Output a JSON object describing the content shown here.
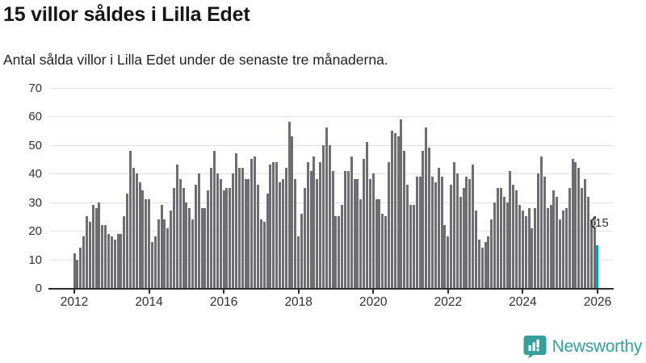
{
  "header": {
    "title": "15 villor såldes i Lilla Edet",
    "subtitle": "Antal sålda villor i Lilla Edet under de senaste tre månaderna."
  },
  "chart_data": {
    "type": "bar",
    "title": "15 villor såldes i Lilla Edet",
    "description": "Monthly bars of sold houses, Jan 2012 through latest period",
    "start_year": 2012,
    "values": [
      12,
      10,
      14,
      18,
      25,
      23,
      29,
      28,
      30,
      22,
      22,
      19,
      18,
      17,
      19,
      19,
      25,
      33,
      48,
      42,
      40,
      37,
      34,
      31,
      31,
      16,
      18,
      24,
      29,
      24,
      21,
      27,
      35,
      43,
      38,
      35,
      30,
      28,
      24,
      36,
      40,
      28,
      28,
      34,
      42,
      48,
      40,
      38,
      34,
      35,
      35,
      40,
      47,
      42,
      42,
      38,
      38,
      45,
      46,
      36,
      24,
      23,
      33,
      43,
      44,
      44,
      37,
      38,
      42,
      58,
      53,
      38,
      18,
      26,
      35,
      44,
      41,
      46,
      38,
      44,
      50,
      56,
      50,
      41,
      25,
      25,
      29,
      41,
      41,
      46,
      38,
      38,
      31,
      45,
      51,
      38,
      40,
      31,
      31,
      26,
      25,
      44,
      55,
      54,
      53,
      59,
      48,
      36,
      29,
      29,
      39,
      39,
      48,
      56,
      49,
      39,
      37,
      42,
      39,
      22,
      18,
      36,
      44,
      40,
      32,
      35,
      39,
      38,
      43,
      27,
      17,
      14,
      16,
      18,
      24,
      30,
      35,
      35,
      32,
      30,
      41,
      36,
      34,
      29,
      27,
      25,
      28,
      21,
      28,
      40,
      46,
      39,
      28,
      29,
      34,
      32,
      24,
      27,
      28,
      35,
      45,
      44,
      42,
      35,
      38,
      32,
      24,
      25,
      15
    ],
    "highlight": {
      "index": 168,
      "value": 15,
      "label": "15",
      "color": "#0ca2a1"
    },
    "bar_color": "#6d6d72",
    "y_ticks": [
      0,
      10,
      20,
      30,
      40,
      50,
      60,
      70
    ],
    "ylim": [
      0,
      70
    ],
    "x_ticks": [
      {
        "label": "2012",
        "month_index": 0
      },
      {
        "label": "2014",
        "month_index": 24
      },
      {
        "label": "2016",
        "month_index": 48
      },
      {
        "label": "2018",
        "month_index": 72
      },
      {
        "label": "2020",
        "month_index": 96
      },
      {
        "label": "2022",
        "month_index": 120
      },
      {
        "label": "2024",
        "month_index": 144
      },
      {
        "label": "2026",
        "month_index": 168
      }
    ],
    "grid": true,
    "legend": null
  },
  "footer": {
    "brand": "Newsworthy",
    "logo_icon": "speech-bubble-bar-chart-icon",
    "brand_color": "#379f99"
  }
}
